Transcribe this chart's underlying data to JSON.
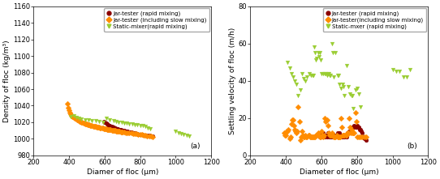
{
  "left": {
    "title_label": "(a)",
    "xlabel": "Diamer of floc (μm)",
    "ylabel": "Density of floc (kg/m³)",
    "xlim": [
      200,
      1200
    ],
    "ylim": [
      980,
      1160
    ],
    "xticks": [
      200,
      400,
      600,
      800,
      1000,
      1200
    ],
    "yticks": [
      980,
      1000,
      1020,
      1040,
      1060,
      1080,
      1100,
      1120,
      1140,
      1160
    ],
    "series": [
      {
        "label": "Jar-tester (rapid mixing)",
        "color": "#8B0000",
        "marker": "o",
        "x": [
          595,
          600,
          610,
          615,
          620,
          625,
          630,
          635,
          640,
          645,
          650,
          655,
          660,
          665,
          670,
          675,
          680,
          685,
          690,
          695,
          700,
          705,
          710,
          715,
          720,
          725,
          730,
          735,
          740,
          745,
          750,
          755,
          760,
          765,
          770,
          775,
          780,
          785,
          790,
          795,
          800,
          810,
          820,
          830,
          840,
          850,
          855,
          860,
          870
        ],
        "y": [
          1021,
          1020,
          1019,
          1018,
          1017,
          1016,
          1016,
          1015,
          1015,
          1014,
          1014,
          1013,
          1013,
          1012,
          1012,
          1012,
          1011,
          1011,
          1011,
          1010,
          1010,
          1010,
          1010,
          1009,
          1009,
          1009,
          1009,
          1008,
          1008,
          1008,
          1008,
          1007,
          1007,
          1007,
          1007,
          1006,
          1006,
          1006,
          1005,
          1005,
          1005,
          1005,
          1004,
          1004,
          1004,
          1004,
          1003,
          1003,
          1003
        ]
      },
      {
        "label": "Jar-tester (including slow mixing)",
        "color": "#FF8C00",
        "marker": "D",
        "x": [
          390,
          395,
          400,
          405,
          410,
          415,
          420,
          425,
          430,
          435,
          440,
          445,
          450,
          455,
          460,
          465,
          470,
          475,
          480,
          485,
          490,
          495,
          500,
          505,
          510,
          515,
          520,
          525,
          530,
          535,
          540,
          545,
          550,
          555,
          560,
          565,
          570,
          575,
          580,
          585,
          590,
          595,
          600,
          605,
          610,
          615,
          620,
          625,
          630,
          635,
          640,
          645,
          650,
          655,
          660,
          665,
          670,
          675,
          680,
          685,
          690,
          695,
          700,
          710,
          720,
          730,
          740,
          750,
          760,
          770,
          780,
          790,
          800,
          810,
          820,
          830,
          840,
          850,
          860,
          870
        ],
        "y": [
          1042,
          1038,
          1035,
          1032,
          1030,
          1028,
          1027,
          1026,
          1025,
          1025,
          1024,
          1023,
          1023,
          1022,
          1021,
          1021,
          1020,
          1020,
          1019,
          1019,
          1018,
          1018,
          1018,
          1017,
          1017,
          1017,
          1016,
          1016,
          1016,
          1015,
          1015,
          1015,
          1015,
          1014,
          1014,
          1014,
          1014,
          1013,
          1013,
          1013,
          1013,
          1012,
          1012,
          1012,
          1012,
          1011,
          1011,
          1011,
          1011,
          1011,
          1010,
          1010,
          1010,
          1010,
          1010,
          1009,
          1009,
          1009,
          1009,
          1009,
          1008,
          1008,
          1008,
          1008,
          1007,
          1007,
          1007,
          1007,
          1006,
          1006,
          1006,
          1005,
          1005,
          1005,
          1004,
          1004,
          1003,
          1003,
          1003,
          1002
        ]
      },
      {
        "label": "Static-mixer(rapid mixing)",
        "color": "#9ACD32",
        "marker": "v",
        "x": [
          410,
          425,
          440,
          455,
          470,
          490,
          510,
          530,
          550,
          570,
          590,
          610,
          630,
          650,
          665,
          680,
          695,
          710,
          725,
          740,
          755,
          770,
          785,
          800,
          815,
          830,
          845,
          855,
          1000,
          1015,
          1030,
          1045,
          1060,
          1075
        ],
        "y": [
          1027,
          1028,
          1026,
          1025,
          1024,
          1023,
          1023,
          1022,
          1022,
          1021,
          1020,
          1025,
          1023,
          1022,
          1021,
          1020,
          1020,
          1019,
          1019,
          1018,
          1018,
          1017,
          1017,
          1016,
          1016,
          1015,
          1013,
          1012,
          1009,
          1007,
          1006,
          1005,
          1004,
          1003
        ]
      }
    ]
  },
  "right": {
    "title_label": "(b)",
    "xlabel": "Diameter of floc (μm)",
    "ylabel": "Settling velocity of floc (m/h)",
    "xlim": [
      200,
      1200
    ],
    "ylim": [
      0,
      80
    ],
    "xticks": [
      200,
      400,
      600,
      800,
      1000,
      1200
    ],
    "yticks": [
      0,
      20,
      40,
      60,
      80
    ],
    "series": [
      {
        "label": "Jar-tester (rapid mixing)",
        "color": "#8B0000",
        "marker": "o",
        "x": [
          580,
          590,
          595,
          600,
          605,
          610,
          615,
          620,
          625,
          630,
          635,
          640,
          645,
          650,
          655,
          660,
          665,
          670,
          675,
          680,
          685,
          690,
          695,
          700,
          705,
          710,
          715,
          720,
          725,
          730,
          735,
          740,
          745,
          750,
          755,
          760,
          765,
          770,
          775,
          780,
          785,
          790,
          795,
          800,
          805,
          810,
          815,
          820,
          825,
          830,
          835,
          840,
          845,
          850
        ],
        "y": [
          11,
          10,
          12,
          11,
          10,
          12,
          11,
          10,
          11,
          10,
          12,
          11,
          10,
          11,
          10,
          11,
          10,
          10,
          11,
          10,
          11,
          12,
          10,
          12,
          11,
          11,
          10,
          10,
          11,
          10,
          11,
          10,
          12,
          12,
          13,
          13,
          14,
          14,
          15,
          15,
          16,
          15,
          15,
          16,
          15,
          15,
          14,
          14,
          13,
          12,
          10,
          9,
          9,
          8
        ]
      },
      {
        "label": "Jar-tester(including slow mixing)",
        "color": "#FF8C00",
        "marker": "D",
        "x": [
          390,
          395,
          400,
          405,
          410,
          415,
          420,
          425,
          430,
          435,
          440,
          445,
          450,
          455,
          460,
          465,
          470,
          475,
          480,
          485,
          490,
          495,
          500,
          505,
          510,
          515,
          520,
          525,
          530,
          535,
          540,
          545,
          550,
          555,
          560,
          565,
          570,
          575,
          580,
          585,
          590,
          595,
          600,
          605,
          610,
          615,
          620,
          625,
          630,
          635,
          640,
          645,
          650,
          655,
          660,
          665,
          670,
          675,
          680,
          685,
          690,
          695,
          700,
          705,
          710,
          715,
          720,
          725,
          730,
          735,
          740,
          745,
          750,
          755,
          760,
          765,
          770,
          775,
          780,
          785,
          790,
          795,
          800,
          810,
          820,
          830,
          840,
          850
        ],
        "y": [
          12,
          11,
          11,
          13,
          13,
          14,
          9,
          10,
          17,
          19,
          19,
          16,
          14,
          13,
          12,
          13,
          26,
          18,
          8,
          10,
          13,
          11,
          10,
          10,
          11,
          10,
          10,
          11,
          11,
          10,
          10,
          10,
          10,
          10,
          10,
          10,
          11,
          11,
          12,
          11,
          10,
          10,
          13,
          11,
          10,
          11,
          20,
          18,
          19,
          16,
          12,
          11,
          11,
          11,
          12,
          11,
          10,
          10,
          10,
          11,
          10,
          10,
          10,
          10,
          20,
          15,
          11,
          11,
          11,
          11,
          11,
          12,
          12,
          20,
          15,
          12,
          14,
          12,
          12,
          12,
          23,
          18,
          10,
          10,
          10,
          10,
          10,
          10
        ]
      },
      {
        "label": "Static-mxer (rapid mixing)",
        "color": "#9ACD32",
        "marker": "v",
        "x": [
          410,
          420,
          430,
          440,
          450,
          460,
          470,
          480,
          490,
          500,
          510,
          520,
          530,
          540,
          550,
          555,
          560,
          565,
          570,
          575,
          580,
          585,
          590,
          595,
          600,
          610,
          620,
          625,
          630,
          635,
          640,
          645,
          650,
          660,
          665,
          670,
          680,
          690,
          695,
          700,
          710,
          720,
          725,
          730,
          740,
          750,
          760,
          770,
          775,
          780,
          790,
          800,
          810,
          820,
          1000,
          1020,
          1040,
          1060,
          1080,
          1100
        ],
        "y": [
          50,
          47,
          44,
          42,
          40,
          38,
          32,
          35,
          44,
          41,
          40,
          42,
          44,
          43,
          43,
          43,
          58,
          55,
          51,
          52,
          55,
          53,
          55,
          51,
          44,
          44,
          44,
          44,
          43,
          44,
          44,
          43,
          43,
          60,
          55,
          42,
          55,
          43,
          43,
          38,
          36,
          38,
          37,
          32,
          48,
          37,
          33,
          32,
          32,
          25,
          35,
          36,
          33,
          26,
          46,
          45,
          45,
          42,
          42,
          46
        ]
      }
    ]
  },
  "legend_fontsize": 5.0,
  "label_fontsize": 6.5,
  "tick_fontsize": 6.0,
  "marker_size": 3.5
}
